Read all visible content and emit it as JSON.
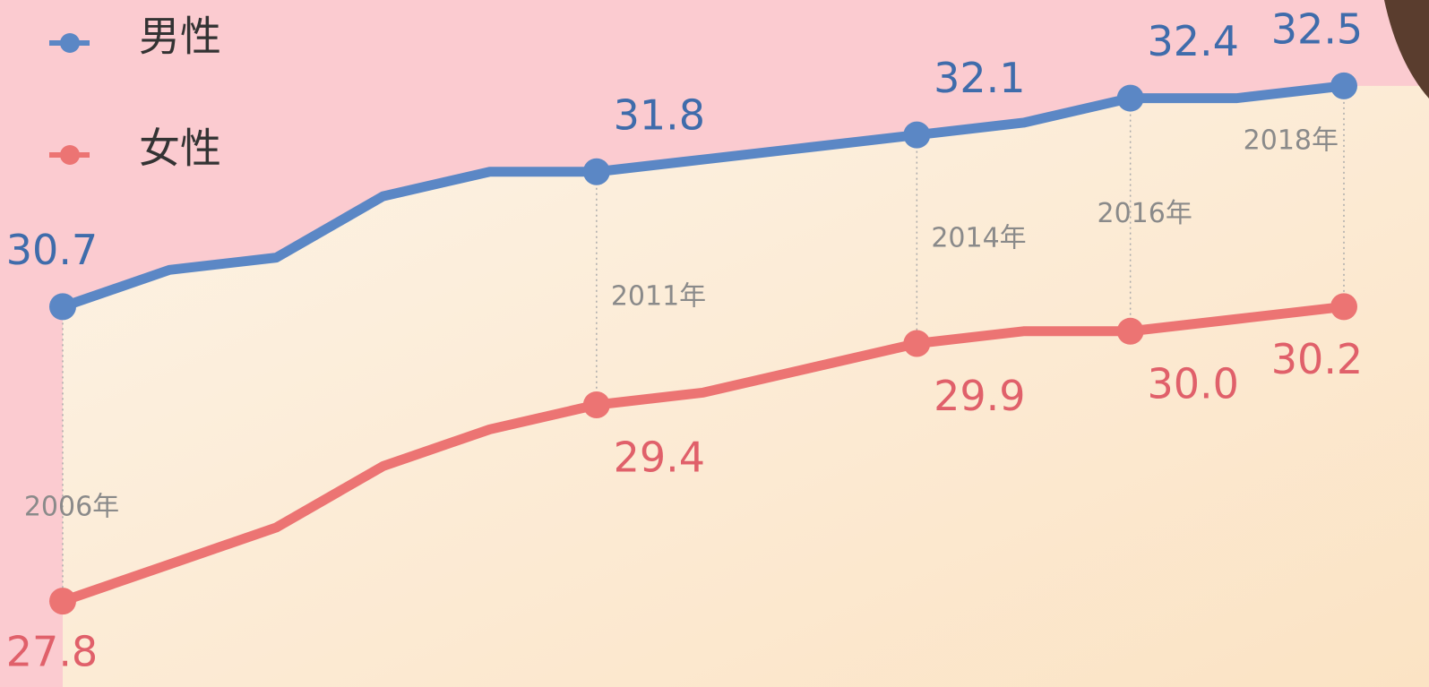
{
  "chart_data": {
    "type": "line",
    "categories": [
      "2006年",
      null,
      null,
      null,
      null,
      "2011年",
      null,
      null,
      "2014年",
      null,
      "2016年",
      null,
      "2018年"
    ],
    "series": [
      {
        "name": "男性",
        "color": "#5b87c5",
        "label_color": "#3f6cab",
        "values": [
          30.7,
          31.0,
          31.1,
          31.6,
          31.8,
          31.8,
          31.9,
          32.0,
          32.1,
          32.2,
          32.4,
          32.4,
          32.5
        ],
        "value_labels": [
          "30.7",
          null,
          null,
          null,
          null,
          "31.8",
          null,
          null,
          "32.1",
          null,
          "32.4",
          null,
          "32.5"
        ]
      },
      {
        "name": "女性",
        "color": "#ec7473",
        "label_color": "#e0606a",
        "axis": "y2",
        "values": [
          27.8,
          28.1,
          28.4,
          28.9,
          29.2,
          29.4,
          29.5,
          29.7,
          29.9,
          30.0,
          30.0,
          30.1,
          30.2
        ],
        "value_labels": [
          "27.8",
          null,
          null,
          null,
          null,
          "29.4",
          null,
          null,
          "29.9",
          null,
          "30.0",
          null,
          "30.2"
        ]
      }
    ],
    "ylim": [
      27.6,
      33.2
    ],
    "y2lim": [
      27.1,
      32.7
    ],
    "legend": "top-left"
  }
}
